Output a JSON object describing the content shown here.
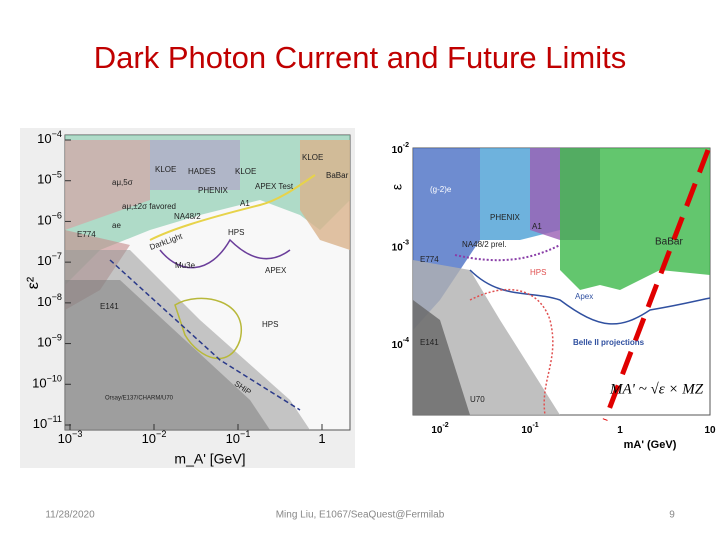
{
  "slide": {
    "title": "Dark Photon Current and Future Limits",
    "footer": {
      "date": "11/28/2020",
      "author": "Ming Liu, E1067/SeaQuest@Fermilab",
      "page": "9"
    },
    "left_figure": {
      "y_axis_label": "ε²",
      "x_axis_label": "m_A' [GeV]",
      "yticks": [
        {
          "base": "10",
          "exp": "−4"
        },
        {
          "base": "10",
          "exp": "−5"
        },
        {
          "base": "10",
          "exp": "−6"
        },
        {
          "base": "10",
          "exp": "−7"
        },
        {
          "base": "10",
          "exp": "−8"
        },
        {
          "base": "10",
          "exp": "−9"
        },
        {
          "base": "10",
          "exp": "−10"
        },
        {
          "base": "10",
          "exp": "−11"
        }
      ],
      "xticks": [
        {
          "base": "10",
          "exp": "−3"
        },
        {
          "base": "10",
          "exp": "−2"
        },
        {
          "base": "10",
          "exp": "−1"
        },
        {
          "base": "1",
          "exp": ""
        }
      ],
      "labels": [
        "KLOE",
        "HADES",
        "KLOE",
        "KLOE",
        "BaBar",
        "PHENIX",
        "APEX Test",
        "aμ,5σ",
        "aμ,±2σ favored",
        "NA48/2",
        "A1",
        "ae",
        "E774",
        "DarkLight",
        "HPS",
        "Mu3e",
        "APEX",
        "E141",
        "HPS",
        "SHiP",
        "Orsay/E137/CHARM/U70"
      ]
    },
    "right_figure": {
      "y_axis_label": "ε",
      "x_axis_label": "mA' (GeV)",
      "yticks": [
        {
          "base": "10",
          "exp": "-2"
        },
        {
          "base": "10",
          "exp": "-3"
        },
        {
          "base": "10",
          "exp": "-4"
        }
      ],
      "xticks": [
        {
          "base": "10",
          "exp": "-2"
        },
        {
          "base": "10",
          "exp": "-1"
        },
        {
          "base": "1",
          "exp": ""
        },
        {
          "base": "10",
          "exp": ""
        }
      ],
      "labels": [
        "(g-2)e",
        "PHENIX",
        "A1",
        "BaBar",
        "NA48/2 prel.",
        "E774",
        "HPS",
        "Apex",
        "E141",
        "Belle II projections",
        "U70"
      ],
      "annotation": "MA' ~ √ε × MZ"
    }
  }
}
